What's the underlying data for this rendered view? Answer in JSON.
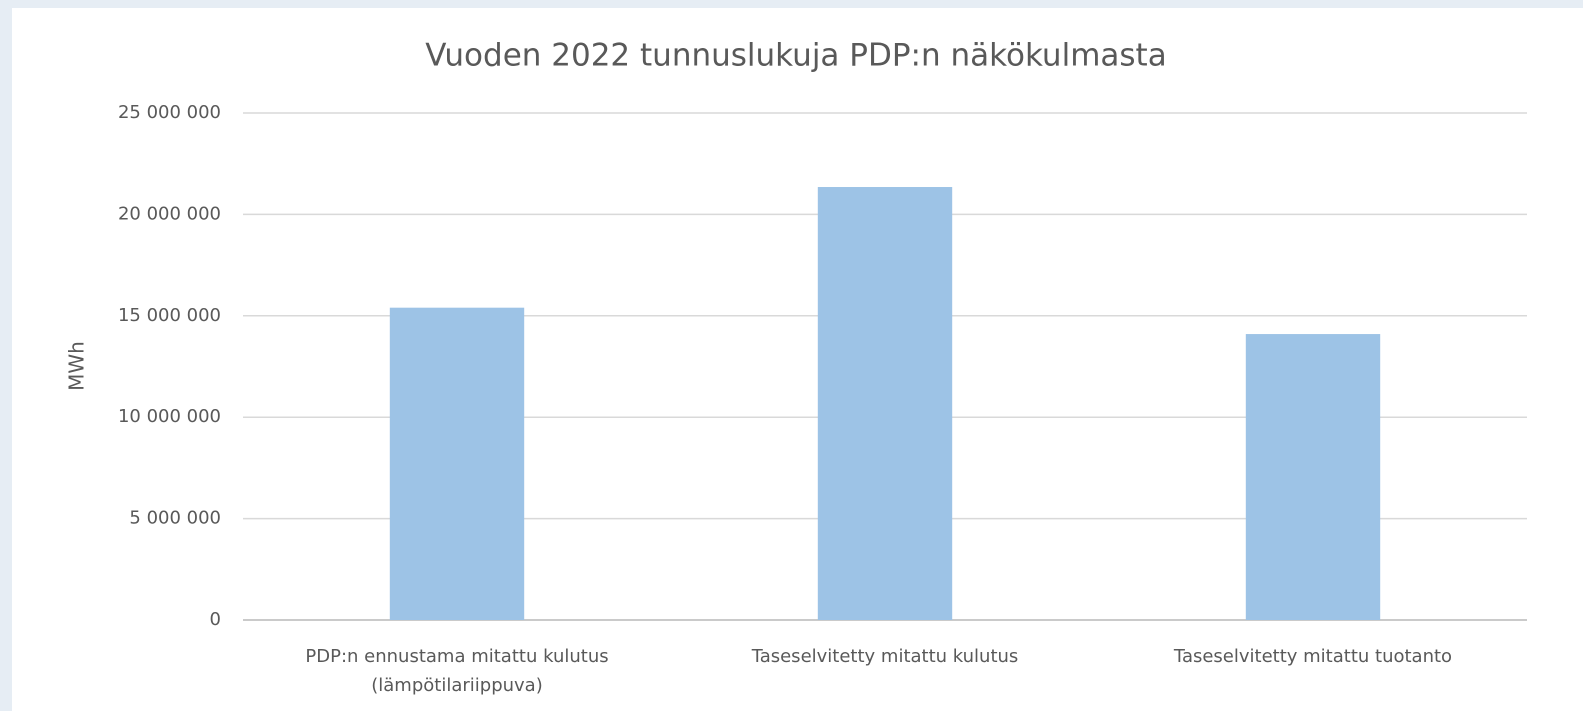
{
  "chart_data": {
    "type": "bar",
    "title": "Vuoden 2022 tunnuslukuja PDP:n näkökulmasta",
    "y_label": "MWh",
    "categories": [
      "PDP:n ennustama mitattu kulutus (lämpötilariippuva)",
      "Taseselvitetty mitattu kulutus",
      "Taseselvitetty mitattu tuotanto"
    ],
    "values": [
      15400000,
      21350000,
      14100000
    ],
    "color": "#9dc3e6",
    "ylim": [
      0,
      25000000
    ],
    "yticks": [
      0,
      {
        "value": 5000000,
        "label": "5 000 000"
      },
      {
        "value": 10000000,
        "label": "10 000 000"
      },
      {
        "value": 15000000,
        "label": "15 000 000"
      },
      {
        "value": 20000000,
        "label": "20 000 000"
      },
      {
        "value": 25000000,
        "label": "25 000 000"
      }
    ],
    "grid": true
  }
}
